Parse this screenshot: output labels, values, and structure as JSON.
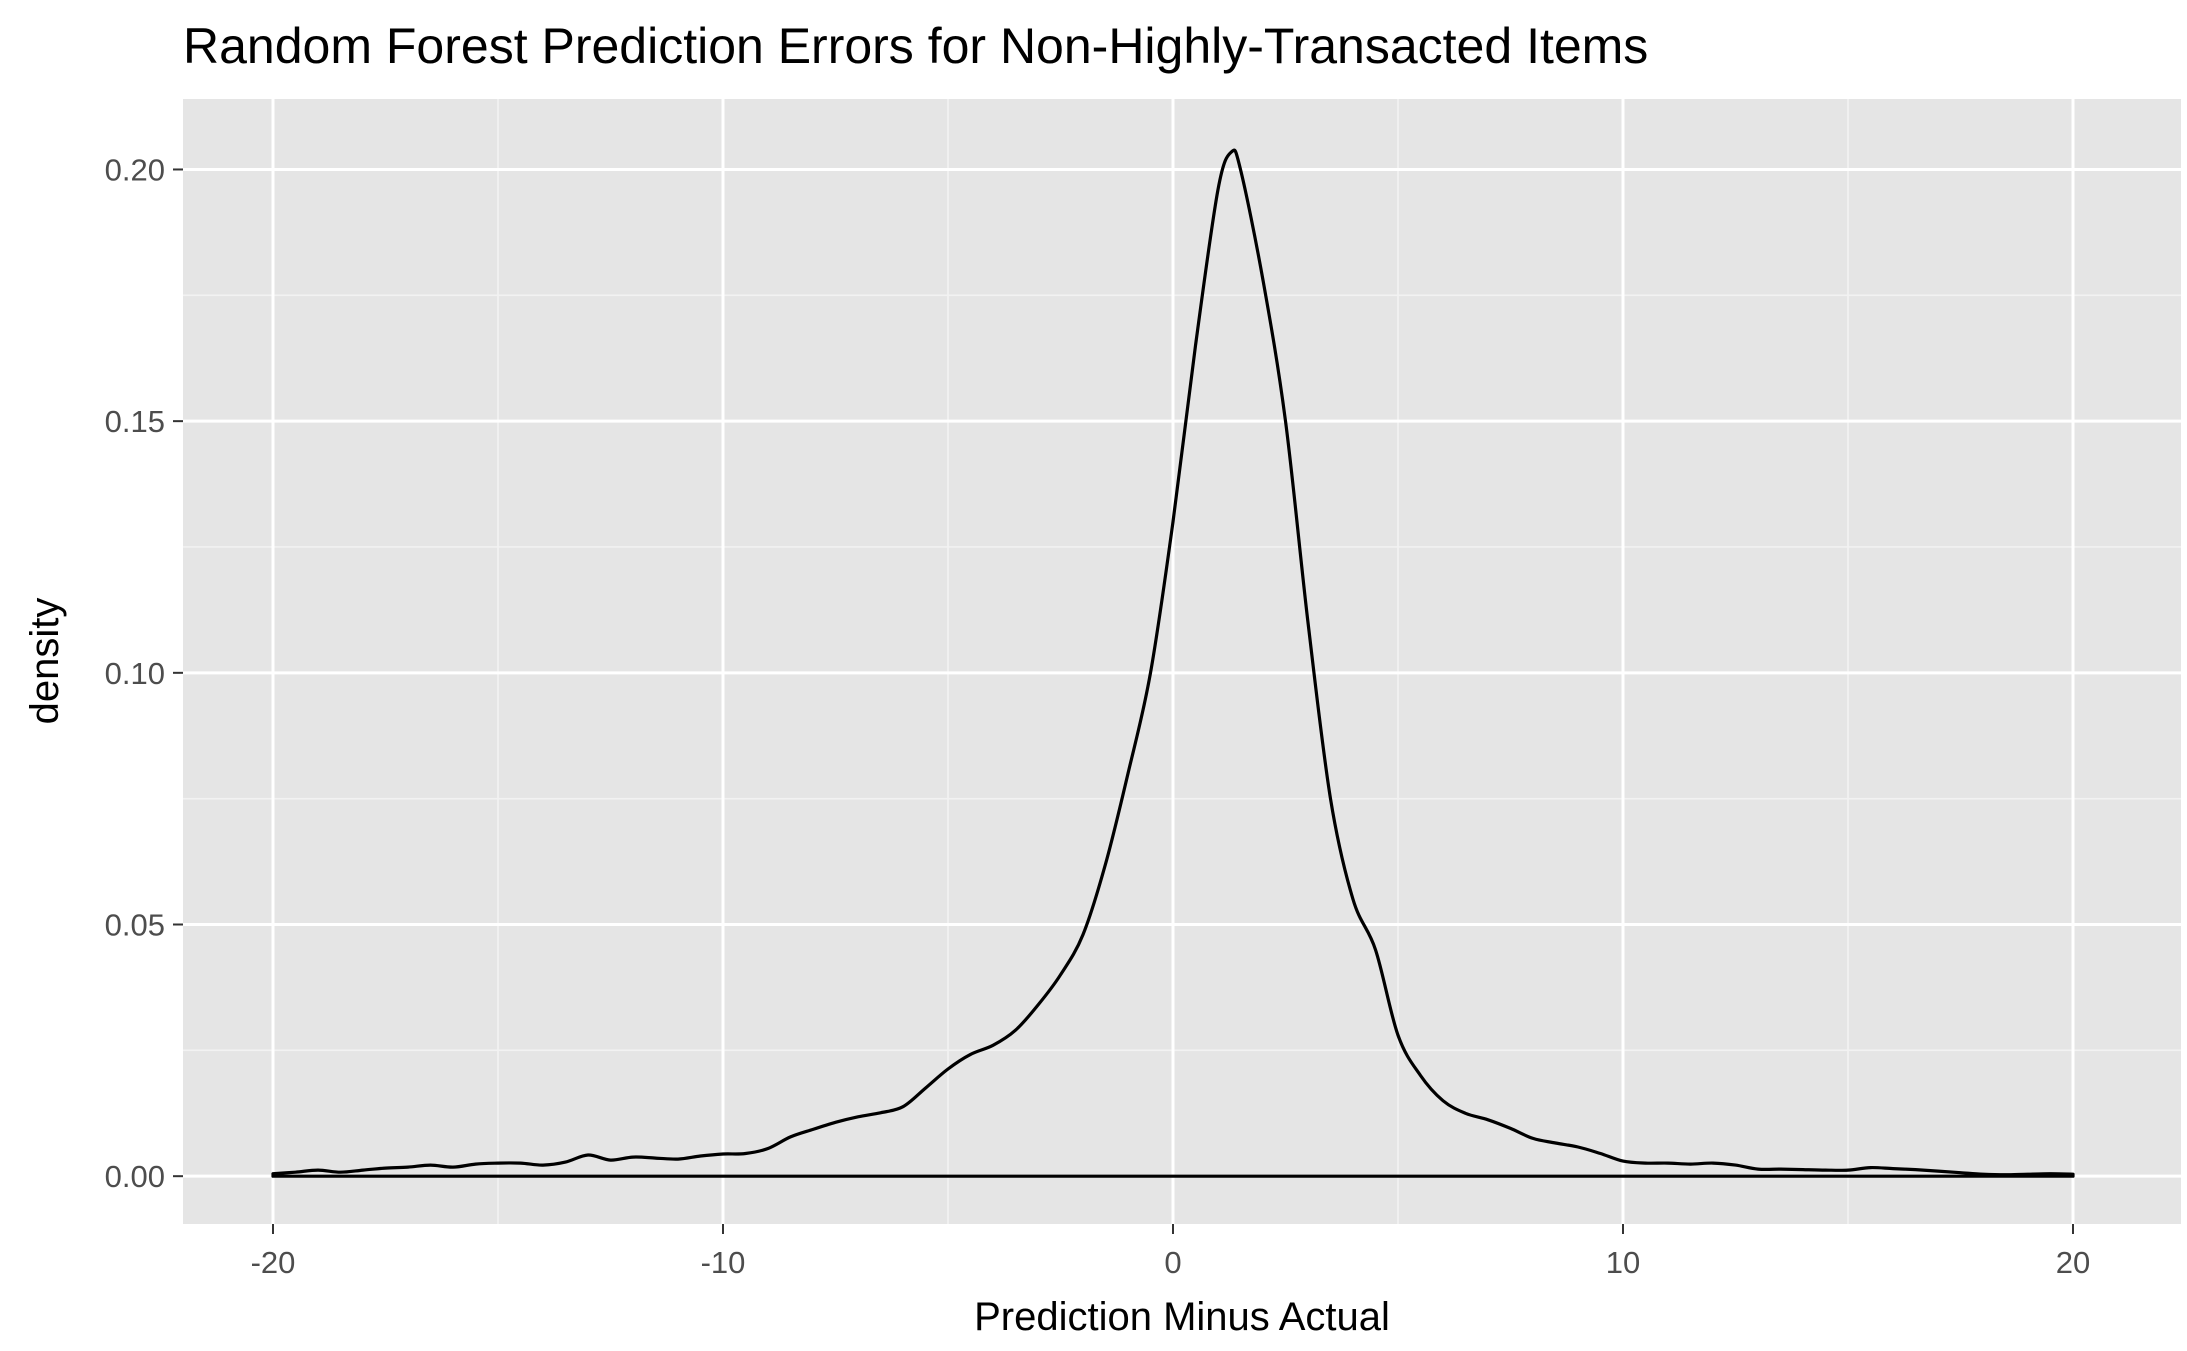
{
  "chart_data": {
    "type": "area",
    "title": "Random Forest Prediction Errors for Non-Highly-Transacted Items",
    "xlabel": "Prediction Minus Actual",
    "ylabel": "density",
    "xlim": [
      -22,
      22.4
    ],
    "ylim": [
      -0.0095,
      0.214
    ],
    "x_ticks": [
      -20,
      -10,
      0,
      10,
      20
    ],
    "x_tick_labels": [
      "-20",
      "-10",
      "0",
      "10",
      "20"
    ],
    "x_minor_ticks": [
      -15,
      -5,
      5,
      15
    ],
    "y_ticks": [
      0.0,
      0.05,
      0.1,
      0.15,
      0.2
    ],
    "y_tick_labels": [
      "0.00",
      "0.05",
      "0.10",
      "0.15",
      "0.20"
    ],
    "y_minor_ticks": [
      0.025,
      0.075,
      0.125,
      0.175
    ],
    "grid": true,
    "legend": "none",
    "colors": {
      "panel_background": "#e5e5e5",
      "grid_major": "#ffffff",
      "grid_minor": "#f2f2f2",
      "line": "#000000",
      "tick_label": "#4d4d4d",
      "axis_tick": "#333333"
    },
    "series": [
      {
        "x": [
          -20,
          -19.5,
          -19,
          -18.5,
          -18,
          -17.5,
          -17,
          -16.5,
          -16,
          -15.5,
          -15,
          -14.5,
          -14,
          -13.5,
          -13,
          -12.5,
          -12,
          -11.5,
          -11,
          -10.5,
          -10,
          -9.5,
          -9,
          -8.5,
          -8,
          -7.5,
          -7,
          -6.5,
          -6,
          -5.5,
          -5,
          -4.5,
          -4,
          -3.5,
          -3,
          -2.5,
          -2,
          -1.5,
          -1,
          -0.5,
          0,
          0.5,
          1,
          1.3,
          1.5,
          2,
          2.5,
          3,
          3.5,
          4,
          4.5,
          5,
          5.5,
          6,
          6.5,
          7,
          7.5,
          8,
          8.5,
          9,
          9.5,
          10,
          10.5,
          11,
          11.5,
          12,
          12.5,
          13,
          13.5,
          14,
          14.5,
          15,
          15.5,
          16,
          16.5,
          17,
          17.5,
          18,
          18.5,
          19,
          19.5,
          20
        ],
        "y": [
          0.0005,
          0.0008,
          0.0012,
          0.0008,
          0.0012,
          0.0016,
          0.0018,
          0.0022,
          0.0018,
          0.0024,
          0.0026,
          0.0026,
          0.0022,
          0.0028,
          0.0042,
          0.0032,
          0.0038,
          0.0036,
          0.0034,
          0.004,
          0.0044,
          0.0045,
          0.0055,
          0.0078,
          0.0093,
          0.0107,
          0.0118,
          0.0126,
          0.0138,
          0.0175,
          0.0213,
          0.0242,
          0.026,
          0.029,
          0.034,
          0.04,
          0.048,
          0.062,
          0.08,
          0.1,
          0.13,
          0.165,
          0.196,
          0.2035,
          0.2,
          0.178,
          0.15,
          0.11,
          0.075,
          0.055,
          0.045,
          0.028,
          0.02,
          0.015,
          0.0125,
          0.0112,
          0.0095,
          0.0075,
          0.0066,
          0.0058,
          0.0045,
          0.003,
          0.0026,
          0.0026,
          0.0024,
          0.0026,
          0.0022,
          0.0014,
          0.0014,
          0.0013,
          0.0012,
          0.0012,
          0.0017,
          0.0015,
          0.0013,
          0.001,
          0.0007,
          0.0004,
          0.0003,
          0.0004,
          0.0005,
          0.0004
        ]
      }
    ]
  }
}
